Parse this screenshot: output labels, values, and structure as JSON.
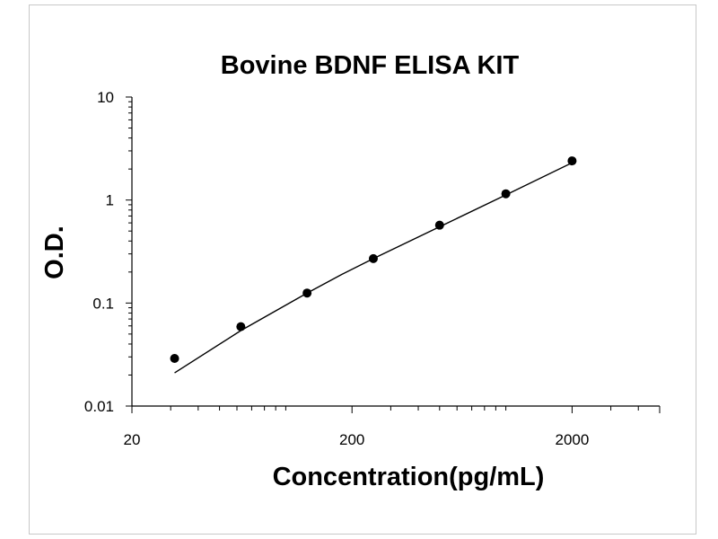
{
  "chart_data": {
    "type": "scatter",
    "title": "Bovine BDNF ELISA KIT",
    "xlabel": "Concentration(pg/mL)",
    "ylabel": "O.D.",
    "x_scale": "log",
    "y_scale": "log",
    "xlim": [
      20,
      5000
    ],
    "ylim": [
      0.01,
      10
    ],
    "x_ticks": [
      {
        "value": 20,
        "label": "20"
      },
      {
        "value": 200,
        "label": "200"
      },
      {
        "value": 2000,
        "label": "2000"
      }
    ],
    "y_ticks": [
      {
        "value": 0.01,
        "label": "0.01"
      },
      {
        "value": 0.1,
        "label": "0.1"
      },
      {
        "value": 1,
        "label": "1"
      },
      {
        "value": 10,
        "label": "10"
      }
    ],
    "grid": false,
    "series": [
      {
        "kind": "points",
        "color": "#000000",
        "points": [
          {
            "x": 31.25,
            "y": 0.029
          },
          {
            "x": 62.5,
            "y": 0.059
          },
          {
            "x": 125,
            "y": 0.125
          },
          {
            "x": 250,
            "y": 0.27
          },
          {
            "x": 500,
            "y": 0.57
          },
          {
            "x": 1000,
            "y": 1.15
          },
          {
            "x": 2000,
            "y": 2.4
          }
        ]
      },
      {
        "kind": "fit-line",
        "color": "#000000",
        "points": [
          {
            "x": 31.25,
            "y": 0.021
          },
          {
            "x": 62.5,
            "y": 0.054
          },
          {
            "x": 125,
            "y": 0.125
          },
          {
            "x": 180,
            "y": 0.19
          },
          {
            "x": 250,
            "y": 0.27
          },
          {
            "x": 500,
            "y": 0.55
          },
          {
            "x": 1000,
            "y": 1.12
          },
          {
            "x": 2000,
            "y": 2.3
          }
        ]
      }
    ]
  }
}
